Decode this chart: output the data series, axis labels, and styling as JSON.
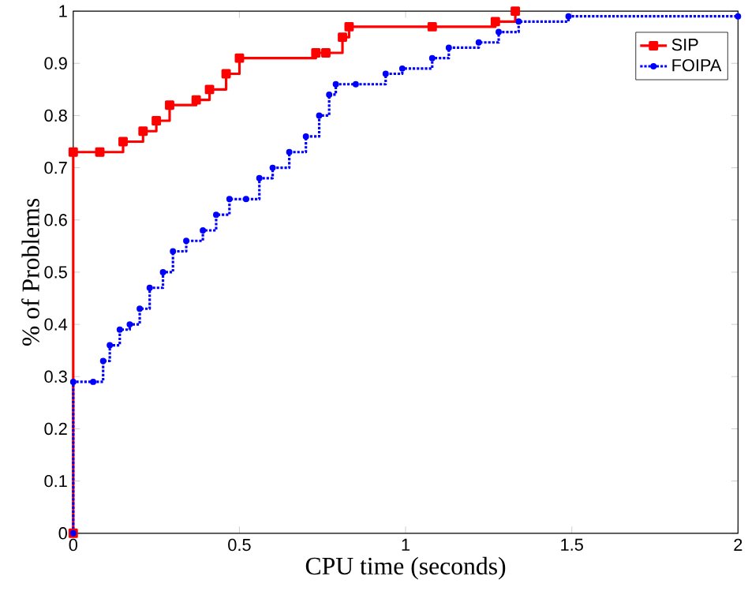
{
  "chart_data": {
    "type": "step",
    "xlabel": "CPU time (seconds)",
    "ylabel": "% of Problems",
    "xlim": [
      0,
      2
    ],
    "ylim": [
      0,
      1
    ],
    "xticks": [
      0,
      0.5,
      1,
      1.5,
      2
    ],
    "yticks": [
      0,
      0.1,
      0.2,
      0.3,
      0.4,
      0.5,
      0.6,
      0.7,
      0.8,
      0.9,
      1
    ],
    "legend": "top right",
    "grid": false,
    "series": [
      {
        "name": "SIP",
        "color": "#ff0000",
        "marker": "square",
        "line_style": "solid",
        "x": [
          0,
          0,
          0.08,
          0.15,
          0.21,
          0.25,
          0.29,
          0.37,
          0.41,
          0.46,
          0.5,
          0.73,
          0.76,
          0.81,
          0.83,
          1.08,
          1.27,
          1.33
        ],
        "values": [
          0,
          0.73,
          0.73,
          0.75,
          0.77,
          0.79,
          0.82,
          0.83,
          0.85,
          0.88,
          0.91,
          0.92,
          0.92,
          0.95,
          0.97,
          0.97,
          0.98,
          1
        ]
      },
      {
        "name": "FOIPA",
        "color": "#0000ff",
        "marker": "circle",
        "line_style": "dotted",
        "x": [
          0,
          0,
          0.06,
          0.09,
          0.11,
          0.14,
          0.17,
          0.2,
          0.23,
          0.27,
          0.3,
          0.34,
          0.39,
          0.43,
          0.47,
          0.52,
          0.56,
          0.6,
          0.65,
          0.7,
          0.74,
          0.77,
          0.79,
          0.85,
          0.94,
          0.99,
          1.08,
          1.13,
          1.22,
          1.28,
          1.34,
          1.49,
          2
        ],
        "values": [
          0,
          0.29,
          0.29,
          0.33,
          0.36,
          0.39,
          0.4,
          0.43,
          0.47,
          0.5,
          0.54,
          0.56,
          0.58,
          0.61,
          0.64,
          0.64,
          0.68,
          0.7,
          0.73,
          0.76,
          0.8,
          0.84,
          0.86,
          0.86,
          0.88,
          0.89,
          0.91,
          0.93,
          0.94,
          0.96,
          0.98,
          0.99,
          0.99
        ]
      }
    ]
  }
}
